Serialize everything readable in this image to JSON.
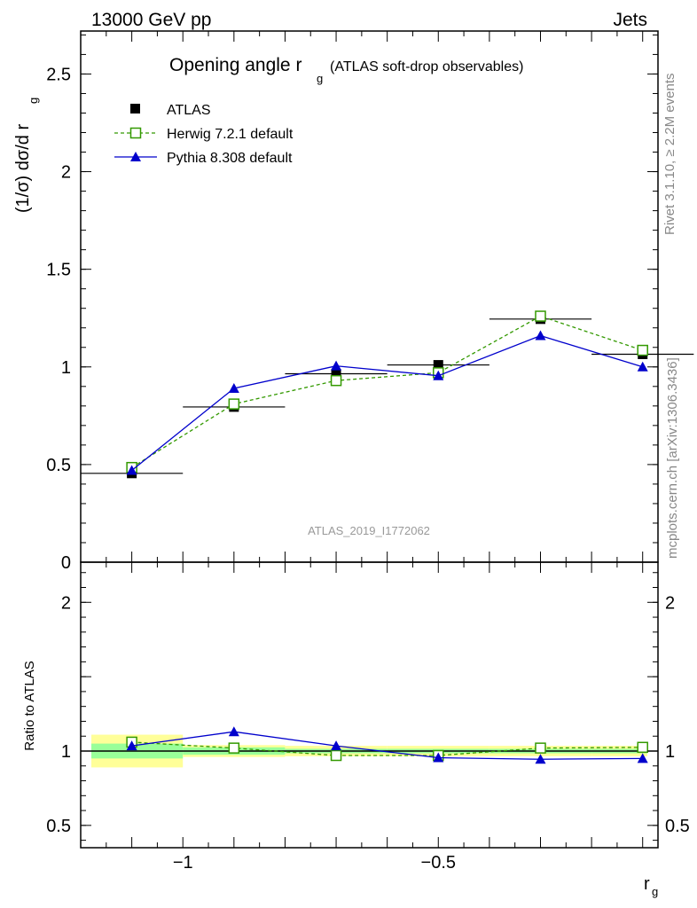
{
  "header": {
    "energy_label": "13000 GeV pp",
    "process_label": "Jets"
  },
  "side_labels": {
    "rivet": "Rivet 3.1.10, ≥ 2.2M events",
    "mcplots": "mcplots.cern.ch [arXiv:1306.3436]"
  },
  "chart_data": [
    {
      "type": "line",
      "panel": "main",
      "title": "Opening angle r",
      "title_subscript": "g",
      "title_suffix": "(ATLAS soft-drop observables)",
      "ylabel": "(1/σ) dσ/d r",
      "ylabel_subscript": "g",
      "watermark": "ATLAS_2019_I1772062",
      "xlim": [
        -1.2,
        -0.07
      ],
      "ylim": [
        0,
        2.72
      ],
      "y_ticks": [
        0,
        0.5,
        1,
        1.5,
        2,
        2.5
      ],
      "y_tick_labels": [
        "0",
        "0.5",
        "1",
        "1.5",
        "2",
        "2.5"
      ],
      "legend_position": "top-left",
      "x": [
        -1.1,
        -0.9,
        -0.7,
        -0.5,
        -0.3,
        -0.1
      ],
      "series": [
        {
          "name": "ATLAS",
          "style": "marker",
          "marker": "filled-square",
          "color": "#000000",
          "values": [
            0.455,
            0.795,
            0.965,
            1.01,
            1.245,
            1.065
          ],
          "x_errors": [
            0.1,
            0.1,
            0.1,
            0.1,
            0.1,
            0.1
          ]
        },
        {
          "name": "Herwig 7.2.1 default",
          "style": "dashed",
          "marker": "open-square",
          "color": "#339900",
          "values": [
            0.485,
            0.81,
            0.93,
            0.97,
            1.26,
            1.085
          ]
        },
        {
          "name": "Pythia 8.308 default",
          "style": "solid",
          "marker": "filled-triangle",
          "color": "#0000cc",
          "values": [
            0.47,
            0.89,
            1.005,
            0.955,
            1.16,
            1.0
          ]
        }
      ]
    },
    {
      "type": "line",
      "panel": "ratio",
      "ylabel": "Ratio to ATLAS",
      "xlabel": "r",
      "xlabel_subscript": "g",
      "xlim": [
        -1.2,
        -0.07
      ],
      "ylim": [
        0.35,
        2.27
      ],
      "x_ticks": [
        -1,
        -0.5
      ],
      "x_tick_labels": [
        "−1",
        "−0.5"
      ],
      "y_ticks": [
        0.5,
        1,
        2
      ],
      "y_tick_labels": [
        "0.5",
        "1",
        "2"
      ],
      "x": [
        -1.1,
        -0.9,
        -0.7,
        -0.5,
        -0.3,
        -0.1
      ],
      "bands": {
        "bin_edges": [
          -1.2,
          -1.0,
          -0.8,
          -0.6,
          -0.4,
          -0.2,
          -0.07
        ],
        "yellow_color": "#ffff99",
        "yellow_low": [
          0.89,
          0.96,
          0.965,
          0.965,
          0.965,
          0.965
        ],
        "yellow_high": [
          1.11,
          1.04,
          1.035,
          1.035,
          1.035,
          1.035
        ],
        "green_color": "#99ff99",
        "green_low": [
          0.95,
          0.975,
          0.985,
          0.985,
          0.985,
          0.985
        ],
        "green_high": [
          1.05,
          1.025,
          1.015,
          1.015,
          1.015,
          1.015
        ]
      },
      "series": [
        {
          "name": "Herwig 7.2.1 default",
          "style": "dashed",
          "marker": "open-square",
          "color": "#339900",
          "values": [
            1.06,
            1.02,
            0.97,
            0.97,
            1.02,
            1.025
          ]
        },
        {
          "name": "Pythia 8.308 default",
          "style": "solid",
          "marker": "filled-triangle",
          "color": "#0000cc",
          "values": [
            1.035,
            1.13,
            1.035,
            0.955,
            0.945,
            0.95
          ]
        }
      ]
    }
  ]
}
